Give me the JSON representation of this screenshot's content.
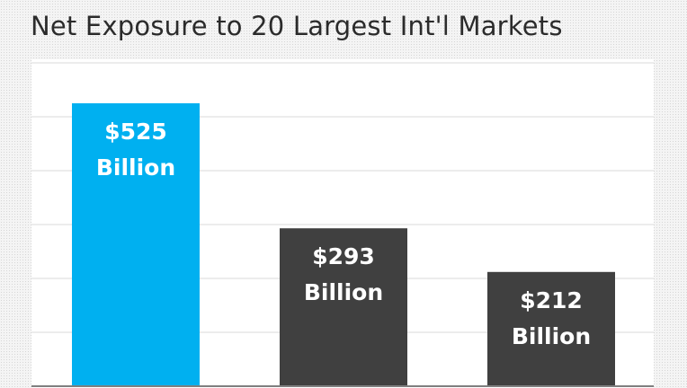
{
  "chart_data": {
    "type": "bar",
    "title": "Net Exposure to 20 Largest Int'l Markets",
    "xlabel": "",
    "ylabel": "",
    "categories": [
      "",
      "",
      ""
    ],
    "values": [
      525,
      293,
      212
    ],
    "data_labels": [
      [
        "$525",
        "Billion"
      ],
      [
        "$293",
        "Billion"
      ],
      [
        "$212",
        "Billion"
      ]
    ],
    "ylim": [
      0,
      600
    ],
    "gridlines": [
      100,
      200,
      300,
      400,
      500,
      600
    ],
    "grid": true,
    "legend": "none",
    "colors": [
      "#00b0f0",
      "#404040",
      "#404040"
    ],
    "label_color": "#ffffff",
    "grid_color": "#d9d9d9"
  }
}
